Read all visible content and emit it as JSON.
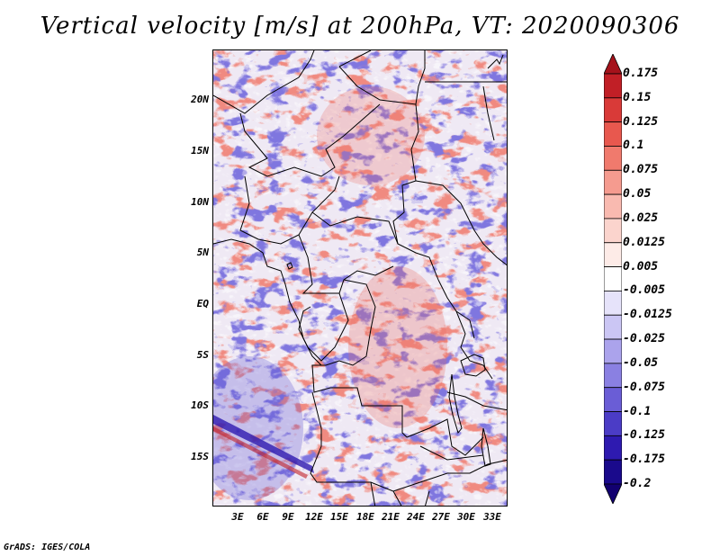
{
  "title": "Vertical velocity [m/s] at 200hPa, VT: 2020090306",
  "credit": "GrADS: IGES/COLA",
  "map": {
    "lat_labels": [
      "20N",
      "15N",
      "10N",
      "5N",
      "EQ",
      "5S",
      "10S",
      "15S"
    ],
    "lon_labels": [
      "3E",
      "6E",
      "9E",
      "12E",
      "15E",
      "18E",
      "21E",
      "24E",
      "27E",
      "30E",
      "33E"
    ]
  },
  "colorbar": {
    "levels": [
      "0.175",
      "0.15",
      "0.125",
      "0.1",
      "0.075",
      "0.05",
      "0.025",
      "0.0125",
      "0.005",
      "-0.005",
      "-0.0125",
      "-0.025",
      "-0.05",
      "-0.075",
      "-0.1",
      "-0.125",
      "-0.175",
      "-0.2"
    ],
    "colors": [
      "#a5121b",
      "#c11f26",
      "#d93a38",
      "#e8584e",
      "#f07a6d",
      "#f59b8f",
      "#f9bab0",
      "#fbd4cd",
      "#fdebe7",
      "#ffffff",
      "#e6e3fa",
      "#cbc6f4",
      "#aba3ec",
      "#8a80e2",
      "#6a5dd6",
      "#4b3cc6",
      "#2e1ab0",
      "#1a0a8c",
      "#120070"
    ]
  }
}
